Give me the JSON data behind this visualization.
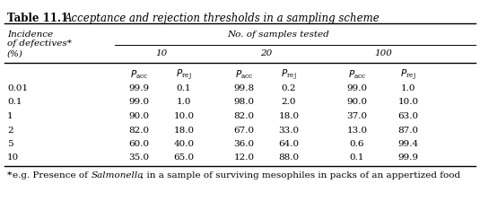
{
  "title_bold": "Table 11.1",
  "title_italic": "Acceptance and rejection thresholds in a sampling scheme",
  "col_header_main": "No. of samples tested",
  "col_groups": [
    "10",
    "20",
    "100"
  ],
  "row_label_header": [
    "Incidence",
    "of defectives*",
    "(%)"
  ],
  "row_labels": [
    "0.01",
    "0.1",
    "1",
    "2",
    "5",
    "10"
  ],
  "data": [
    [
      "99.9",
      "0.1",
      "99.8",
      "0.2",
      "99.0",
      "1.0"
    ],
    [
      "99.0",
      "1.0",
      "98.0",
      "2.0",
      "90.0",
      "10.0"
    ],
    [
      "90.0",
      "10.0",
      "82.0",
      "18.0",
      "37.0",
      "63.0"
    ],
    [
      "82.0",
      "18.0",
      "67.0",
      "33.0",
      "13.0",
      "87.0"
    ],
    [
      "60.0",
      "40.0",
      "36.0",
      "64.0",
      "0.6",
      "99.4"
    ],
    [
      "35.0",
      "65.0",
      "12.0",
      "88.0",
      "0.1",
      "99.9"
    ]
  ],
  "bg_color": "#ffffff",
  "text_color": "#000000",
  "fs": 7.5,
  "tfs": 8.5,
  "fig_w": 5.35,
  "fig_h": 2.44
}
